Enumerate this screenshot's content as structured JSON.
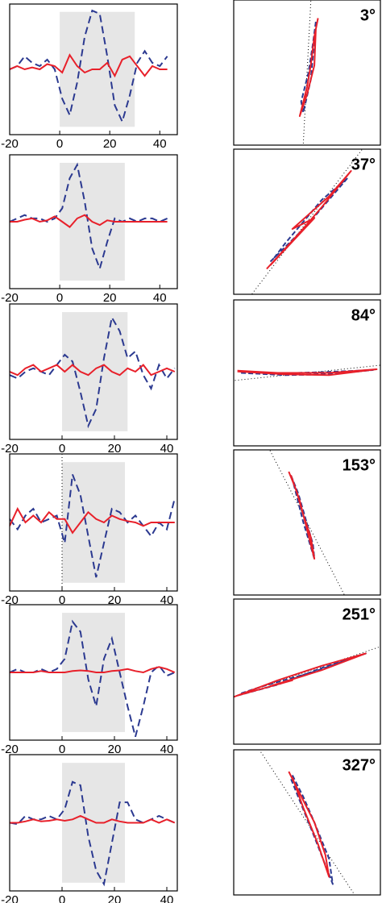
{
  "chart_data": [
    {
      "type": "line",
      "xlim": [
        -20,
        47
      ],
      "ylim": [
        -1,
        1
      ],
      "xticks": [
        -20,
        0,
        20,
        40
      ],
      "span": [
        0,
        30
      ],
      "x": [
        -20,
        -17,
        -14,
        -11,
        -8,
        -5,
        -2,
        1,
        4,
        7,
        10,
        13,
        16,
        19,
        22,
        25,
        28,
        31,
        34,
        37,
        40,
        43
      ],
      "series": [
        {
          "color": "#2b3990",
          "dash": true,
          "values": [
            0.0,
            0.05,
            0.2,
            0.1,
            0.05,
            0.15,
            0.0,
            -0.45,
            -0.7,
            -0.2,
            0.5,
            0.9,
            0.85,
            0.2,
            -0.55,
            -0.8,
            -0.4,
            0.1,
            0.28,
            0.1,
            0.05,
            0.2
          ]
        },
        {
          "color": "#e8202a",
          "dash": false,
          "values": [
            0.0,
            0.05,
            0.0,
            0.03,
            0.0,
            0.08,
            0.05,
            -0.05,
            0.22,
            0.05,
            -0.05,
            0.0,
            0.0,
            0.1,
            -0.1,
            0.15,
            0.2,
            0.05,
            -0.1,
            0.05,
            0.0,
            0.0
          ]
        }
      ]
    },
    {
      "type": "polarization",
      "xlim": [
        -1,
        1
      ],
      "ylim": [
        -1,
        1
      ],
      "values": [
        3
      ],
      "value_labels": [
        "3°"
      ],
      "series": [
        {
          "color": "#2b3990",
          "dash": true,
          "x": [
            0.12,
            0.08,
            0.02,
            -0.08,
            -0.05,
            0.05,
            0.1
          ],
          "y": [
            0.7,
            0.4,
            0.0,
            -0.4,
            -0.55,
            -0.1,
            0.45
          ]
        },
        {
          "color": "#e8202a",
          "dash": false,
          "x": [
            0.15,
            0.1,
            0.05,
            0.0,
            -0.1,
            0.0,
            0.1,
            0.12
          ],
          "y": [
            0.75,
            0.5,
            0.1,
            -0.2,
            -0.6,
            -0.3,
            0.1,
            0.6
          ]
        }
      ]
    },
    {
      "type": "line",
      "xlim": [
        -20,
        47
      ],
      "ylim": [
        -1,
        1
      ],
      "xticks": [
        -20,
        0,
        20,
        40
      ],
      "span": [
        0,
        26
      ],
      "x": [
        -20,
        -17,
        -14,
        -11,
        -8,
        -5,
        -2,
        1,
        4,
        7,
        10,
        13,
        16,
        19,
        22,
        25,
        28,
        31,
        34,
        37,
        40,
        43
      ],
      "series": [
        {
          "color": "#2b3990",
          "dash": true,
          "values": [
            0,
            0.05,
            0.1,
            0.05,
            0.05,
            0.0,
            0.05,
            0.2,
            0.65,
            0.85,
            0.3,
            -0.4,
            -0.7,
            -0.3,
            0.05,
            0.0,
            0.05,
            0.0,
            0.05,
            0.05,
            0.0,
            0.05
          ]
        },
        {
          "color": "#e8202a",
          "dash": false,
          "values": [
            0,
            0,
            0.03,
            0.05,
            0,
            0.02,
            0.08,
            0,
            -0.08,
            0.05,
            0.1,
            0.0,
            -0.05,
            0.02,
            0,
            0,
            0,
            0,
            0,
            0,
            0,
            0
          ]
        }
      ]
    },
    {
      "type": "polarization",
      "xlim": [
        -1,
        1
      ],
      "ylim": [
        -1,
        1
      ],
      "values": [
        37
      ],
      "value_labels": [
        "37°"
      ],
      "series": [
        {
          "color": "#2b3990",
          "dash": true,
          "x": [
            -0.5,
            0.0,
            0.55,
            0.2,
            -0.3,
            -0.45
          ],
          "y": [
            -0.55,
            -0.05,
            0.6,
            0.3,
            -0.3,
            -0.5
          ]
        },
        {
          "color": "#e8202a",
          "dash": false,
          "x": [
            -0.55,
            -0.1,
            0.2,
            0.6,
            0.3,
            -0.2,
            0.1,
            -0.5
          ],
          "y": [
            -0.65,
            -0.15,
            0.2,
            0.7,
            0.35,
            -0.1,
            0.05,
            -0.6
          ]
        }
      ]
    },
    {
      "type": "line",
      "xlim": [
        -20,
        44
      ],
      "ylim": [
        -1,
        1
      ],
      "xticks": [
        -20,
        0,
        20,
        40
      ],
      "span": [
        0,
        25
      ],
      "x": [
        -20,
        -17,
        -14,
        -11,
        -8,
        -5,
        -2,
        1,
        4,
        7,
        10,
        13,
        16,
        19,
        22,
        25,
        28,
        31,
        34,
        37,
        40,
        43
      ],
      "series": [
        {
          "color": "#2b3990",
          "dash": true,
          "values": [
            -0.05,
            -0.1,
            0.0,
            0.05,
            0.0,
            -0.05,
            0.1,
            0.25,
            0.15,
            -0.3,
            -0.8,
            -0.55,
            0.2,
            0.8,
            0.6,
            0.2,
            0.3,
            -0.05,
            -0.25,
            0.1,
            -0.1,
            0.05
          ]
        },
        {
          "color": "#e8202a",
          "dash": false,
          "values": [
            0,
            -0.05,
            0.05,
            0.1,
            0.0,
            0.05,
            0.1,
            0.0,
            0.1,
            0.0,
            -0.05,
            0.05,
            0.1,
            0.0,
            -0.05,
            0.05,
            0.0,
            0.1,
            -0.05,
            0.0,
            0.05,
            0.0
          ]
        }
      ]
    },
    {
      "type": "polarization",
      "xlim": [
        -1,
        1
      ],
      "ylim": [
        -1,
        1
      ],
      "values": [
        84
      ],
      "value_labels": [
        "84°"
      ],
      "series": [
        {
          "color": "#2b3990",
          "dash": true,
          "x": [
            -0.9,
            -0.3,
            0.3,
            0.9,
            0.2,
            -0.5,
            -0.9
          ],
          "y": [
            0.0,
            -0.03,
            -0.02,
            0.04,
            0.01,
            -0.01,
            0.02
          ]
        },
        {
          "color": "#e8202a",
          "dash": false,
          "x": [
            -0.95,
            -0.3,
            0.3,
            0.95,
            0.3,
            -0.4,
            -0.95
          ],
          "y": [
            0.02,
            -0.02,
            -0.03,
            0.05,
            0.0,
            0.0,
            0.03
          ]
        }
      ]
    },
    {
      "type": "line",
      "xlim": [
        -20,
        44
      ],
      "ylim": [
        -1,
        1
      ],
      "xticks": [
        -20,
        0,
        20,
        40
      ],
      "span": [
        0,
        24
      ],
      "zero_line": true,
      "x": [
        -20,
        -17,
        -14,
        -11,
        -8,
        -5,
        -2,
        1,
        4,
        7,
        10,
        13,
        16,
        19,
        22,
        25,
        28,
        31,
        34,
        37,
        40,
        43
      ],
      "series": [
        {
          "color": "#2b3990",
          "dash": true,
          "values": [
            0.05,
            -0.1,
            0.1,
            0.2,
            0.0,
            0.05,
            0.1,
            -0.3,
            0.7,
            0.4,
            -0.2,
            -0.8,
            -0.3,
            0.2,
            0.15,
            0.0,
            0.1,
            -0.05,
            -0.2,
            0.0,
            -0.1,
            0.35
          ]
        },
        {
          "color": "#e8202a",
          "dash": false,
          "values": [
            -0.05,
            0.2,
            0.0,
            0.1,
            0.0,
            0.15,
            0.05,
            0.05,
            -0.15,
            0.0,
            0.15,
            0.05,
            0.0,
            0.1,
            0.05,
            0.02,
            0.0,
            -0.05,
            0.0,
            0.0,
            0.0,
            0.0
          ]
        }
      ]
    },
    {
      "type": "polarization",
      "xlim": [
        -1,
        1
      ],
      "ylim": [
        -1,
        1
      ],
      "values": [
        153
      ],
      "value_labels": [
        "153°"
      ],
      "series": [
        {
          "color": "#2b3990",
          "dash": true,
          "x": [
            -0.22,
            -0.12,
            -0.02,
            0.08,
            0.1,
            -0.05,
            -0.2
          ],
          "y": [
            0.65,
            0.4,
            0.05,
            -0.3,
            -0.5,
            0.0,
            0.6
          ]
        },
        {
          "color": "#e8202a",
          "dash": false,
          "x": [
            -0.25,
            -0.15,
            -0.05,
            0.05,
            0.1,
            0.0,
            -0.1,
            -0.22
          ],
          "y": [
            0.7,
            0.45,
            0.1,
            -0.2,
            -0.5,
            -0.1,
            0.3,
            0.65
          ]
        }
      ]
    },
    {
      "type": "line",
      "xlim": [
        -20,
        44
      ],
      "ylim": [
        -1,
        1
      ],
      "xticks": [
        -20,
        0,
        20,
        40
      ],
      "span": [
        0,
        24
      ],
      "x": [
        -20,
        -17,
        -14,
        -11,
        -8,
        -5,
        -2,
        1,
        4,
        7,
        10,
        13,
        16,
        19,
        22,
        25,
        28,
        31,
        34,
        37,
        40,
        43
      ],
      "series": [
        {
          "color": "#2b3990",
          "dash": true,
          "values": [
            0,
            0.05,
            0.0,
            0.0,
            0.05,
            0.0,
            0.05,
            0.2,
            0.75,
            0.6,
            -0.1,
            -0.5,
            0.2,
            0.5,
            0.0,
            -0.5,
            -0.95,
            -0.5,
            0.0,
            0.1,
            -0.05,
            0.0
          ]
        },
        {
          "color": "#e8202a",
          "dash": false,
          "values": [
            0,
            0,
            0.0,
            0.0,
            0.02,
            0.0,
            0.0,
            0.0,
            0.02,
            0.03,
            0.02,
            0.0,
            0.0,
            0.02,
            0.03,
            0.05,
            0.02,
            0.0,
            0.05,
            0.08,
            0.05,
            0.0
          ]
        }
      ]
    },
    {
      "type": "polarization",
      "xlim": [
        -1,
        1
      ],
      "ylim": [
        -1,
        1
      ],
      "values": [
        251
      ],
      "value_labels": [
        "251°"
      ],
      "series": [
        {
          "color": "#2b3990",
          "dash": true,
          "x": [
            -0.95,
            -0.4,
            0.2,
            0.8,
            0.1,
            -0.6,
            -0.9
          ],
          "y": [
            -0.33,
            -0.18,
            0.05,
            0.25,
            0.0,
            -0.2,
            -0.3
          ]
        },
        {
          "color": "#e8202a",
          "dash": false,
          "x": [
            -1.0,
            -0.4,
            0.2,
            0.8,
            0.2,
            -0.5,
            -0.2,
            -0.95
          ],
          "y": [
            -0.35,
            -0.12,
            0.08,
            0.25,
            0.02,
            -0.2,
            -0.12,
            -0.33
          ]
        }
      ]
    },
    {
      "type": "line",
      "xlim": [
        -20,
        44
      ],
      "ylim": [
        -1,
        1
      ],
      "xticks": [
        -20,
        0,
        20,
        40
      ],
      "span": [
        0,
        24
      ],
      "x": [
        -20,
        -17,
        -14,
        -11,
        -8,
        -5,
        -2,
        1,
        4,
        7,
        10,
        13,
        16,
        19,
        22,
        25,
        28,
        31,
        34,
        37,
        40,
        43
      ],
      "series": [
        {
          "color": "#2b3990",
          "dash": true,
          "values": [
            0.0,
            -0.02,
            0.1,
            0.05,
            0.05,
            0.1,
            0.05,
            0.2,
            0.6,
            0.55,
            -0.2,
            -0.7,
            -0.9,
            -0.3,
            0.3,
            0.3,
            0.05,
            0.0,
            0.05,
            0.1,
            0.05,
            0.0
          ]
        },
        {
          "color": "#e8202a",
          "dash": false,
          "values": [
            0.0,
            0.0,
            0.02,
            0.05,
            0.02,
            0.03,
            0.05,
            0.03,
            0.05,
            0.1,
            0.05,
            0.0,
            0.0,
            0.05,
            0.02,
            0.0,
            0.0,
            0.0,
            0.05,
            0.0,
            0.05,
            0.0
          ]
        }
      ]
    },
    {
      "type": "polarization",
      "xlim": [
        -1,
        1
      ],
      "ylim": [
        -1,
        1
      ],
      "values": [
        327
      ],
      "value_labels": [
        "327°"
      ],
      "series": [
        {
          "color": "#2b3990",
          "dash": true,
          "x": [
            -0.2,
            -0.05,
            0.1,
            0.3,
            0.35,
            0.1,
            -0.1,
            -0.22
          ],
          "y": [
            0.65,
            0.35,
            0.0,
            -0.5,
            -0.85,
            -0.2,
            0.3,
            0.6
          ]
        },
        {
          "color": "#e8202a",
          "dash": false,
          "x": [
            -0.25,
            -0.1,
            0.1,
            0.25,
            0.3,
            0.15,
            -0.05,
            -0.2
          ],
          "y": [
            0.7,
            0.4,
            0.0,
            -0.45,
            -0.75,
            -0.3,
            0.2,
            0.62
          ]
        }
      ]
    }
  ]
}
